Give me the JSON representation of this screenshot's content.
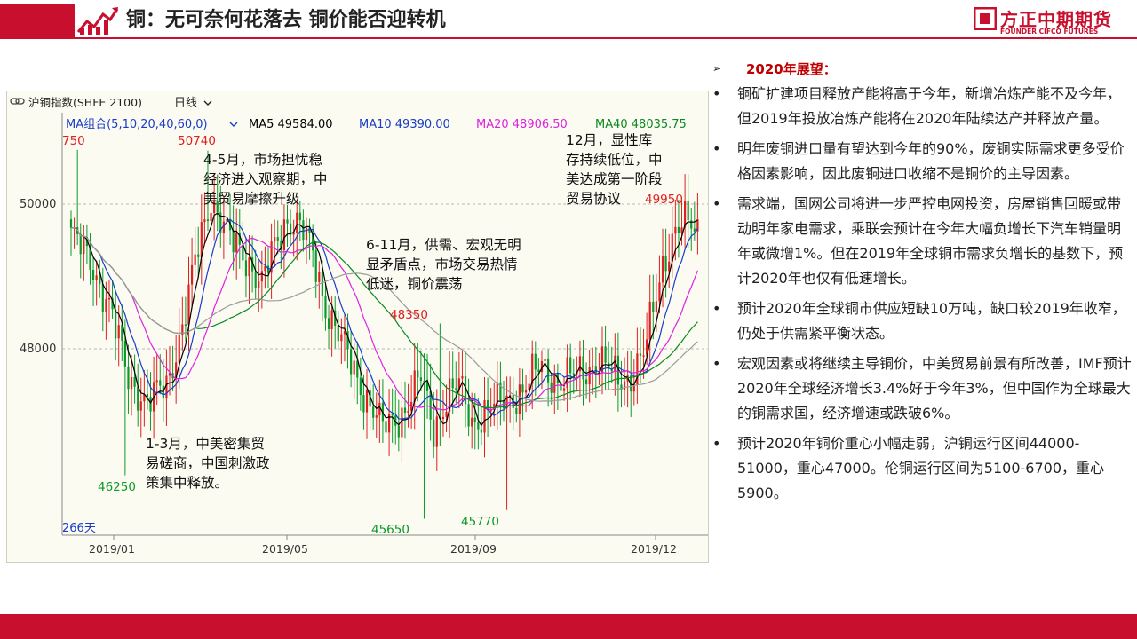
{
  "header": {
    "title": "铜：无可奈何花落去  铜价能否迎转机",
    "brand_cn": "方正中期期货",
    "brand_en": "FOUNDER CIFCO FUTURES"
  },
  "chart_panel": {
    "instrument": "沪铜指数(SHFE 2100)",
    "period_label": "日线",
    "ma_group": "MA组合(5,10,20,40,60,0)",
    "ma_readouts": [
      {
        "label": "MA5 49584.00",
        "color": "#000000"
      },
      {
        "label": "MA10 49390.00",
        "color": "#1a3cc8"
      },
      {
        "label": "MA20 48906.50",
        "color": "#e020e0"
      },
      {
        "label": "MA40 48035.75",
        "color": "#0b8a20"
      }
    ],
    "days_label": "266天"
  },
  "chart_data": {
    "type": "candlestick",
    "x_ticks": [
      "2019/01",
      "2019/05",
      "2019/09",
      "2019/12"
    ],
    "y_ticks": [
      50000,
      48000
    ],
    "ylim": [
      45400,
      51300
    ],
    "colors": {
      "up": "#e02020",
      "down": "#0a9a2a",
      "ma5": "#000000",
      "ma10": "#1a3cc8",
      "ma20": "#e020e0",
      "ma40": "#0b8a20",
      "ma60": "#9a9a9a",
      "grid": "#b8b8b8"
    },
    "extremes": [
      {
        "label": "750",
        "value": 50750,
        "color": "#e02020"
      },
      {
        "label": "50740",
        "value": 50740,
        "color": "#e02020"
      },
      {
        "label": "46250",
        "value": 46250,
        "color": "#0a9a2a"
      },
      {
        "label": "48350",
        "value": 48350,
        "color": "#e02020"
      },
      {
        "label": "45650",
        "value": 45650,
        "color": "#0a9a2a"
      },
      {
        "label": "45770",
        "value": 45770,
        "color": "#0a9a2a"
      },
      {
        "label": "49950",
        "value": 49950,
        "color": "#e02020"
      }
    ],
    "anchors": [
      [
        0,
        49600
      ],
      [
        6,
        49200
      ],
      [
        12,
        48600
      ],
      [
        18,
        47600
      ],
      [
        24,
        47250
      ],
      [
        30,
        47500
      ],
      [
        35,
        48300
      ],
      [
        40,
        49400
      ],
      [
        44,
        50100
      ],
      [
        50,
        49500
      ],
      [
        56,
        49200
      ],
      [
        60,
        48900
      ],
      [
        64,
        49400
      ],
      [
        68,
        49800
      ],
      [
        72,
        49700
      ],
      [
        76,
        49300
      ],
      [
        80,
        48600
      ],
      [
        86,
        48000
      ],
      [
        92,
        47400
      ],
      [
        98,
        46900
      ],
      [
        104,
        47100
      ],
      [
        110,
        47600
      ],
      [
        114,
        46900
      ],
      [
        118,
        47300
      ],
      [
        122,
        47500
      ],
      [
        126,
        47000
      ],
      [
        130,
        47100
      ],
      [
        136,
        47300
      ],
      [
        142,
        47400
      ],
      [
        148,
        47800
      ],
      [
        154,
        47500
      ],
      [
        160,
        47700
      ],
      [
        166,
        47800
      ],
      [
        172,
        47600
      ],
      [
        176,
        47600
      ],
      [
        180,
        47900
      ],
      [
        186,
        49200
      ],
      [
        190,
        49600
      ],
      [
        194,
        49750
      ],
      [
        197,
        49650
      ]
    ],
    "annotations": [
      {
        "lines": [
          "4-5月，市场担忧稳",
          "经济进入观察期，中",
          "美贸易摩擦升级"
        ]
      },
      {
        "lines": [
          "6-11月，供需、宏观无明",
          "显矛盾点，市场交易热情",
          "低迷，铜价震荡"
        ]
      },
      {
        "lines": [
          "12月，显性库",
          "存持续低位，中",
          "美达成第一阶段",
          "贸易协议"
        ]
      },
      {
        "lines": [
          "1-3月，中美密集贸",
          "易磋商，中国刺激政",
          "策集中释放。"
        ]
      }
    ]
  },
  "outlook": {
    "heading": "2020年展望：",
    "bullets": [
      "铜矿扩建项目释放产能将高于今年，新增冶炼产能不及今年，但2019年投放冶炼产能将在2020年陆续达产并释放产量。",
      "明年废铜进口量有望达到今年的90%，废铜实际需求更多受价格因素影响，因此废铜进口收缩不是铜价的主导因素。",
      "需求端，国网公司将进一步严控电网投资，房屋销售回暖或带动明年家电需求，乘联会预计在今年大幅负增长下汽车销量明年或微增1%。但在2019年全球铜市需求负增长的基数下，预计2020年也仅有低速增长。",
      "预计2020年全球铜市供应短缺10万吨，缺口较2019年收窄，仍处于供需紧平衡状态。",
      "宏观因素或将继续主导铜价，中美贸易前景有所改善，IMF预计2020年全球经济增长3.4%好于今年3%，但中国作为全球最大的铜需求国，经济增速或跌破6%。",
      "预计2020年铜价重心小幅走弱，沪铜运行区间44000-51000，重心47000。伦铜运行区间为5100-6700，重心5900。"
    ]
  }
}
